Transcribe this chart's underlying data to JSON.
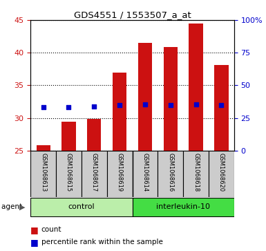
{
  "title": "GDS4551 / 1553507_a_at",
  "samples": [
    "GSM1068613",
    "GSM1068615",
    "GSM1068617",
    "GSM1068619",
    "GSM1068614",
    "GSM1068616",
    "GSM1068618",
    "GSM1068620"
  ],
  "counts": [
    25.8,
    29.4,
    29.8,
    37.0,
    41.5,
    40.9,
    44.5,
    38.1
  ],
  "percentiles": [
    33.2,
    33.2,
    33.8,
    34.6,
    35.4,
    35.0,
    35.4,
    34.6
  ],
  "bar_color": "#cc1111",
  "dot_color": "#0000cc",
  "groups": [
    {
      "label": "control",
      "start": 0,
      "end": 4,
      "color": "#bbeeaa"
    },
    {
      "label": "interleukin-10",
      "start": 4,
      "end": 8,
      "color": "#44dd44"
    }
  ],
  "agent_label": "agent",
  "ylim_left": [
    25,
    45
  ],
  "ylim_right": [
    0,
    100
  ],
  "yticks_left": [
    25,
    30,
    35,
    40,
    45
  ],
  "yticks_right": [
    0,
    25,
    50,
    75,
    100
  ],
  "ytick_labels_right": [
    "0",
    "25",
    "50",
    "75",
    "100%"
  ],
  "background_color": "#ffffff",
  "plot_bg_color": "#ffffff",
  "legend_count": "count",
  "legend_percentile": "percentile rank within the sample",
  "grid_color": "black",
  "label_bg": "#cccccc",
  "bar_width": 0.55
}
